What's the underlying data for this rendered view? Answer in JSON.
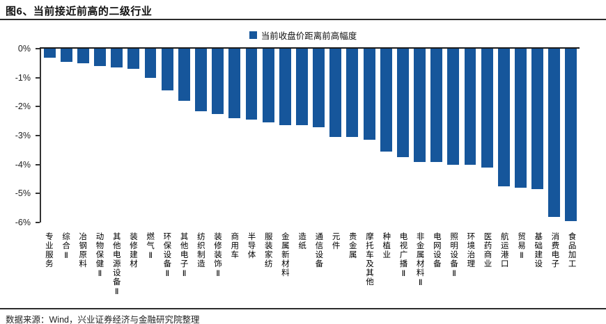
{
  "header": {
    "title": "图6、当前接近前高的二级行业"
  },
  "legend": {
    "label": "当前收盘价距离前高幅度"
  },
  "footer": {
    "source": "数据来源：Wind，兴业证券经济与金融研究院整理"
  },
  "colors": {
    "bar": "#16569B",
    "axis": "#333333",
    "rule": "#2b2b2b"
  },
  "chart_data": {
    "type": "bar",
    "title": "图6、当前接近前高的二级行业",
    "legend_entries": [
      "当前收盘价距离前高幅度"
    ],
    "legend_position": "top-center",
    "grid": false,
    "orientation": "vertical",
    "ylabel": "",
    "xlabel": "",
    "ylim": [
      -6,
      0
    ],
    "y_ticks": [
      "0%",
      "-1%",
      "-2%",
      "-3%",
      "-4%",
      "-5%",
      "-6%"
    ],
    "categories": [
      "专业服务",
      "综合Ⅱ",
      "冶钢原料",
      "动物保健Ⅱ",
      "其他电源设备Ⅱ",
      "装修建材",
      "燃气Ⅱ",
      "环保设备Ⅱ",
      "其他电子Ⅱ",
      "纺织制造",
      "装修装饰Ⅱ",
      "商用车",
      "半导体",
      "服装家纺",
      "金属新材料",
      "造纸",
      "通信设备",
      "元件",
      "贵金属",
      "摩托车及其他",
      "种植业",
      "电视广播Ⅱ",
      "非金属材料Ⅱ",
      "电网设备",
      "照明设备Ⅱ",
      "环境治理",
      "医药商业",
      "航运港口",
      "贸易Ⅱ",
      "基础建设",
      "消费电子",
      "食品加工"
    ],
    "values": [
      -0.3,
      -0.45,
      -0.5,
      -0.6,
      -0.65,
      -0.7,
      -1.0,
      -1.45,
      -1.8,
      -2.15,
      -2.25,
      -2.4,
      -2.45,
      -2.55,
      -2.65,
      -2.65,
      -2.7,
      -3.05,
      -3.05,
      -3.15,
      -3.55,
      -3.75,
      -3.9,
      -3.9,
      -4.0,
      -4.0,
      -4.1,
      -4.75,
      -4.8,
      -4.85,
      -5.8,
      -5.95
    ]
  }
}
